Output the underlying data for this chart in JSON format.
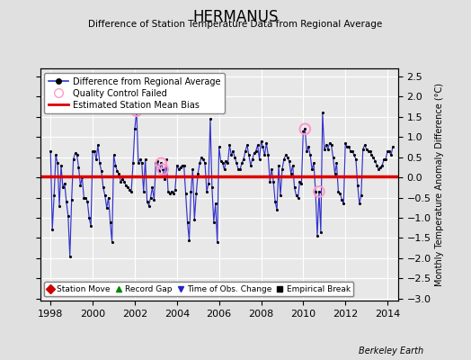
{
  "title": "HERMANUS",
  "subtitle": "Difference of Station Temperature Data from Regional Average",
  "ylabel_right": "Monthly Temperature Anomaly Difference (°C)",
  "xlim": [
    1997.5,
    2014.5
  ],
  "ylim": [
    -3.05,
    2.7
  ],
  "yticks": [
    -3,
    -2.5,
    -2,
    -1.5,
    -1,
    -0.5,
    0,
    0.5,
    1,
    1.5,
    2,
    2.5
  ],
  "xticks": [
    1998,
    2000,
    2002,
    2004,
    2006,
    2008,
    2010,
    2012,
    2014
  ],
  "bias_line": 0.02,
  "bias_color": "#dd0000",
  "line_color": "#3333cc",
  "dot_color": "#000000",
  "background_color": "#e8e8e8",
  "fig_background": "#e0e0e0",
  "grid_color": "#ffffff",
  "berkeley_earth_text": "Berkeley Earth",
  "legend1_items": [
    {
      "label": "Difference from Regional Average"
    },
    {
      "label": "Quality Control Failed"
    },
    {
      "label": "Estimated Station Mean Bias"
    }
  ],
  "legend2_items": [
    {
      "label": "Station Move",
      "color": "#cc0000",
      "marker": "D"
    },
    {
      "label": "Record Gap",
      "color": "#008800",
      "marker": "^"
    },
    {
      "label": "Time of Obs. Change",
      "color": "#2222cc",
      "marker": "v"
    },
    {
      "label": "Empirical Break",
      "color": "#000000",
      "marker": "s"
    }
  ],
  "time_series": [
    1998.0,
    1998.0833,
    1998.1667,
    1998.25,
    1998.3333,
    1998.4167,
    1998.5,
    1998.5833,
    1998.6667,
    1998.75,
    1998.8333,
    1998.9167,
    1999.0,
    1999.0833,
    1999.1667,
    1999.25,
    1999.3333,
    1999.4167,
    1999.5,
    1999.5833,
    1999.6667,
    1999.75,
    1999.8333,
    1999.9167,
    2000.0,
    2000.0833,
    2000.1667,
    2000.25,
    2000.3333,
    2000.4167,
    2000.5,
    2000.5833,
    2000.6667,
    2000.75,
    2000.8333,
    2000.9167,
    2001.0,
    2001.0833,
    2001.1667,
    2001.25,
    2001.3333,
    2001.4167,
    2001.5,
    2001.5833,
    2001.6667,
    2001.75,
    2001.8333,
    2001.9167,
    2002.0,
    2002.0833,
    2002.1667,
    2002.25,
    2002.3333,
    2002.4167,
    2002.5,
    2002.5833,
    2002.6667,
    2002.75,
    2002.8333,
    2002.9167,
    2003.0,
    2003.0833,
    2003.1667,
    2003.25,
    2003.3333,
    2003.4167,
    2003.5,
    2003.5833,
    2003.6667,
    2003.75,
    2003.8333,
    2003.9167,
    2004.0,
    2004.0833,
    2004.1667,
    2004.25,
    2004.3333,
    2004.4167,
    2004.5,
    2004.5833,
    2004.6667,
    2004.75,
    2004.8333,
    2004.9167,
    2005.0,
    2005.0833,
    2005.1667,
    2005.25,
    2005.3333,
    2005.4167,
    2005.5,
    2005.5833,
    2005.6667,
    2005.75,
    2005.8333,
    2005.9167,
    2006.0,
    2006.0833,
    2006.1667,
    2006.25,
    2006.3333,
    2006.4167,
    2006.5,
    2006.5833,
    2006.6667,
    2006.75,
    2006.8333,
    2006.9167,
    2007.0,
    2007.0833,
    2007.1667,
    2007.25,
    2007.3333,
    2007.4167,
    2007.5,
    2007.5833,
    2007.6667,
    2007.75,
    2007.8333,
    2007.9167,
    2008.0,
    2008.0833,
    2008.1667,
    2008.25,
    2008.3333,
    2008.4167,
    2008.5,
    2008.5833,
    2008.6667,
    2008.75,
    2008.8333,
    2008.9167,
    2009.0,
    2009.0833,
    2009.1667,
    2009.25,
    2009.3333,
    2009.4167,
    2009.5,
    2009.5833,
    2009.6667,
    2009.75,
    2009.8333,
    2009.9167,
    2010.0,
    2010.0833,
    2010.1667,
    2010.25,
    2010.3333,
    2010.4167,
    2010.5,
    2010.5833,
    2010.6667,
    2010.75,
    2010.8333,
    2010.9167,
    2011.0,
    2011.0833,
    2011.1667,
    2011.25,
    2011.3333,
    2011.4167,
    2011.5,
    2011.5833,
    2011.6667,
    2011.75,
    2011.8333,
    2011.9167,
    2012.0,
    2012.0833,
    2012.1667,
    2012.25,
    2012.3333,
    2012.4167,
    2012.5,
    2012.5833,
    2012.6667,
    2012.75,
    2012.8333,
    2012.9167,
    2013.0,
    2013.0833,
    2013.1667,
    2013.25,
    2013.3333,
    2013.4167,
    2013.5,
    2013.5833,
    2013.6667,
    2013.75,
    2013.8333,
    2013.9167,
    2014.0,
    2014.0833,
    2014.1667,
    2014.25
  ],
  "values": [
    0.65,
    -1.3,
    -0.45,
    0.55,
    0.35,
    -0.7,
    0.3,
    -0.25,
    -0.15,
    -0.6,
    -0.95,
    -1.95,
    -0.55,
    0.45,
    0.6,
    0.55,
    0.25,
    -0.2,
    0.0,
    -0.5,
    -0.5,
    -0.6,
    -1.0,
    -1.2,
    0.65,
    0.65,
    0.45,
    0.8,
    0.35,
    0.15,
    -0.25,
    -0.45,
    -0.75,
    -0.5,
    -1.1,
    -1.6,
    0.55,
    0.3,
    0.15,
    0.1,
    -0.1,
    -0.05,
    -0.1,
    -0.2,
    -0.25,
    -0.3,
    -0.35,
    0.35,
    1.2,
    1.65,
    0.35,
    0.45,
    0.35,
    -0.35,
    0.45,
    -0.6,
    -0.7,
    -0.5,
    -0.25,
    -0.55,
    0.35,
    0.4,
    0.15,
    0.35,
    0.2,
    -0.05,
    0.45,
    -0.35,
    -0.4,
    -0.35,
    -0.4,
    -0.3,
    0.3,
    0.2,
    0.25,
    0.3,
    0.3,
    -0.4,
    -1.1,
    -1.55,
    -0.35,
    0.2,
    -1.05,
    -0.4,
    0.1,
    0.35,
    0.5,
    0.45,
    0.35,
    -0.35,
    -0.15,
    1.45,
    -0.25,
    -1.1,
    -0.65,
    -1.6,
    0.75,
    0.4,
    0.35,
    0.2,
    0.4,
    0.35,
    0.8,
    0.55,
    0.65,
    0.5,
    0.35,
    0.2,
    0.2,
    0.35,
    0.45,
    0.65,
    0.8,
    0.55,
    0.3,
    0.45,
    0.6,
    0.65,
    0.8,
    0.45,
    0.9,
    0.75,
    0.55,
    0.85,
    0.55,
    -0.1,
    0.2,
    -0.1,
    -0.6,
    -0.8,
    0.3,
    -0.45,
    0.2,
    0.45,
    0.55,
    0.5,
    0.4,
    0.1,
    0.3,
    -0.25,
    -0.45,
    -0.5,
    -0.1,
    -0.15,
    1.15,
    1.2,
    0.65,
    0.75,
    0.55,
    0.2,
    0.35,
    -0.35,
    -1.45,
    -0.35,
    -1.35,
    1.6,
    0.7,
    0.8,
    0.7,
    0.85,
    0.8,
    0.5,
    0.1,
    0.35,
    -0.35,
    -0.4,
    -0.55,
    -0.65,
    0.85,
    0.75,
    0.75,
    0.65,
    0.65,
    0.55,
    0.45,
    -0.2,
    -0.65,
    -0.45,
    0.7,
    0.8,
    0.7,
    0.65,
    0.65,
    0.55,
    0.5,
    0.4,
    0.3,
    0.2,
    0.25,
    0.3,
    0.45,
    0.45,
    0.65,
    0.65,
    0.55,
    0.75
  ],
  "qc_failed_times": [
    2002.0833,
    2003.25,
    2003.3333,
    2010.0833,
    2010.75
  ],
  "qc_failed_values": [
    1.65,
    0.35,
    0.2,
    1.2,
    -0.35
  ]
}
